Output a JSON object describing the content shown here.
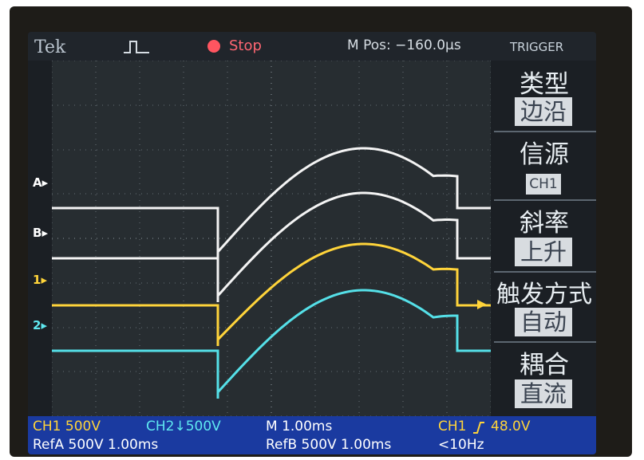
{
  "header": {
    "brand": "Tek",
    "acq_state": "Stop",
    "m_pos": "M Pos: −160.0µs",
    "menu_title": "TRIGGER"
  },
  "trigger_menu": [
    {
      "title": "类型",
      "value": "边沿"
    },
    {
      "title": "信源",
      "value": "CH1"
    },
    {
      "title": "斜率",
      "value": "上升"
    },
    {
      "title": "触发方式",
      "value": "自动"
    },
    {
      "title": "耦合",
      "value": "直流"
    }
  ],
  "markers": {
    "refA": "A",
    "refB": "B",
    "ch1": "1",
    "ch2": "2"
  },
  "status": {
    "ch1": "CH1  500V",
    "ch2": "CH2↓500V",
    "timebase": "M 1.00ms",
    "trig_src": "CH1",
    "trig_level": "48.0V",
    "refA": "RefA 500V 1.00ms",
    "refB": "RefB 500V 1.00ms",
    "freq": "<10Hz"
  },
  "colors": {
    "ref_trace": "#f4f4f4",
    "ch1_trace": "#ffd43a",
    "ch2_trace": "#55e0e8",
    "status_bar": "#1a3aa0",
    "stop_indicator": "#ff5560"
  },
  "icons": {
    "pulse": "pulse-icon",
    "stop": "stop-icon",
    "trigger_position": "trigger-position-icon",
    "trigger_slope": "rising-edge-icon",
    "trigger_level": "trigger-level-icon"
  }
}
